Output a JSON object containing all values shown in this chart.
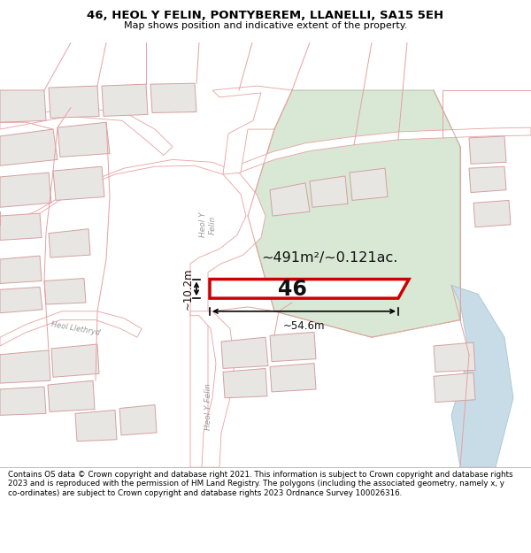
{
  "title_line1": "46, HEOL Y FELIN, PONTYBEREM, LLANELLI, SA15 5EH",
  "title_line2": "Map shows position and indicative extent of the property.",
  "footer_text": "Contains OS data © Crown copyright and database right 2021. This information is subject to Crown copyright and database rights 2023 and is reproduced with the permission of HM Land Registry. The polygons (including the associated geometry, namely x, y co-ordinates) are subject to Crown copyright and database rights 2023 Ordnance Survey 100026316.",
  "area_label": "~491m²/~0.121ac.",
  "width_label": "~54.6m",
  "height_label": "~10.2m",
  "number_label": "46",
  "map_bg": "#f0eeeb",
  "road_fill": "#ffffff",
  "road_stroke": "#e8a0a0",
  "plot_stroke": "#cc0000",
  "title_bg": "#ffffff",
  "footer_bg": "#ffffff",
  "green_fill": "#d8e8d4",
  "blue_fill": "#c8dce8",
  "building_fill": "#e8e6e3",
  "building_stroke": "#d4a0a0"
}
